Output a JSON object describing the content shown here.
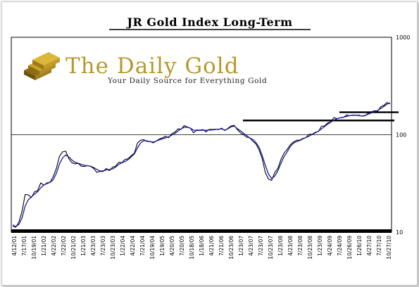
{
  "header": {
    "title": "JR Gold Index Long-Term"
  },
  "logo": {
    "name": "The Daily Gold",
    "tagline": "Your Daily Source for Everything Gold",
    "bar_color": "#c9a227"
  },
  "colors": {
    "price": "#000000",
    "moving_average": "#1a1aa0",
    "background": "#ffffff"
  },
  "chart_data": {
    "type": "line",
    "title": "JR Gold Index Long-Term",
    "xlabel": "",
    "ylabel": "",
    "y_scale": "log",
    "ylim": [
      10,
      1000
    ],
    "y_ticks": [
      10,
      100,
      1000
    ],
    "y_tick_labels": [
      "10",
      "100",
      "1000"
    ],
    "x_tick_labels": [
      "4/12/01",
      "7/17/01",
      "10/19/01",
      "1/21/02",
      "4/22/02",
      "7/22/02",
      "10/21/02",
      "1/21/03",
      "4/23/03",
      "7/23/03",
      "10/23/03",
      "1/22/04",
      "4/22/04",
      "7/21/04",
      "10/19/04",
      "1/19/05",
      "4/20/05",
      "7/20/05",
      "10/18/05",
      "1/18/06",
      "4/21/06",
      "7/21/06",
      "10/23/06",
      "1/23/07",
      "4/23/07",
      "7/23/07",
      "10/23/07",
      "1/23/08",
      "4/23/08",
      "7/23/08",
      "10/23/08",
      "1/23/09",
      "4/24/09",
      "7/24/09",
      "10/26/09",
      "1/26/10",
      "4/27/10",
      "7/27/10",
      "10/27/10"
    ],
    "series": [
      {
        "values": [
          11.5,
          11,
          12.8,
          16.5,
          24.5,
          23.5,
          23,
          26,
          27,
          31,
          31,
          32,
          33,
          36,
          46,
          60,
          67,
          66,
          58,
          52,
          50,
          50,
          48,
          48,
          47.5,
          47,
          45,
          42,
          41,
          42,
          45,
          44,
          45,
          48,
          52,
          53,
          54,
          57,
          61,
          66,
          80,
          88,
          90,
          86,
          84,
          82,
          88,
          90,
          92,
          95,
          96,
          101,
          106,
          113,
          118,
          122,
          120,
          115,
          108,
          110,
          111,
          112,
          110,
          112,
          112,
          114,
          115,
          116,
          108,
          118,
          124,
          125,
          110,
          107,
          100,
          95,
          90,
          88,
          80,
          70,
          55,
          42,
          35,
          34,
          40,
          46,
          56,
          64,
          70,
          80,
          85,
          86,
          88,
          92,
          95,
          98,
          102,
          106,
          110,
          118,
          125,
          132,
          138,
          145,
          148,
          150,
          152,
          155,
          158,
          160,
          158,
          156,
          155,
          160,
          165,
          170,
          175,
          180,
          190,
          200,
          212,
          215
        ]
      },
      {
        "values": [
          11.9,
          11.4,
          12.0,
          14.0,
          18.5,
          21.5,
          23.0,
          24.5,
          26.0,
          28.5,
          30.5,
          31.5,
          32.5,
          34.5,
          40.0,
          50.0,
          58.0,
          62.0,
          59.0,
          55.0,
          52.0,
          51.0,
          49.5,
          48.5,
          48.0,
          47.5,
          46.0,
          44.0,
          42.5,
          42.5,
          43.5,
          44.0,
          44.5,
          46.5,
          49.5,
          51.5,
          53.0,
          55.5,
          59.0,
          63.5,
          73.0,
          82.0,
          87.0,
          86.5,
          85.0,
          84.0,
          86.0,
          88.5,
          90.5,
          93.0,
          95.0,
          99.0,
          103.0,
          109.0,
          115.0,
          119.0,
          119.0,
          116.5,
          111.5,
          110.5,
          110.5,
          111.5,
          111.0,
          111.5,
          112.0,
          113.0,
          114.0,
          115.0,
          111.5,
          115.0,
          120.0,
          122.5,
          115.5,
          110.0,
          103.5,
          98.0,
          92.5,
          89.5,
          83.0,
          74.0,
          61.0,
          48.5,
          39.5,
          35.5,
          37.5,
          42.5,
          51.0,
          59.5,
          66.5,
          75.5,
          82.0,
          85.0,
          87.0,
          90.5,
          93.5,
          96.5,
          100.5,
          104.5,
          108.5,
          115.0,
          121.5,
          128.5,
          134.5,
          141.5,
          146.0,
          149.0,
          151.0,
          154.0,
          157.0,
          159.0,
          158.5,
          157.0,
          155.5,
          158.0,
          162.5,
          167.5,
          172.5,
          177.5,
          186.0,
          195.0,
          206.0,
          212.0
        ]
      }
    ],
    "annotations": {
      "resistance_lines": [
        {
          "value": 140
        },
        {
          "value": 170
        }
      ]
    }
  }
}
